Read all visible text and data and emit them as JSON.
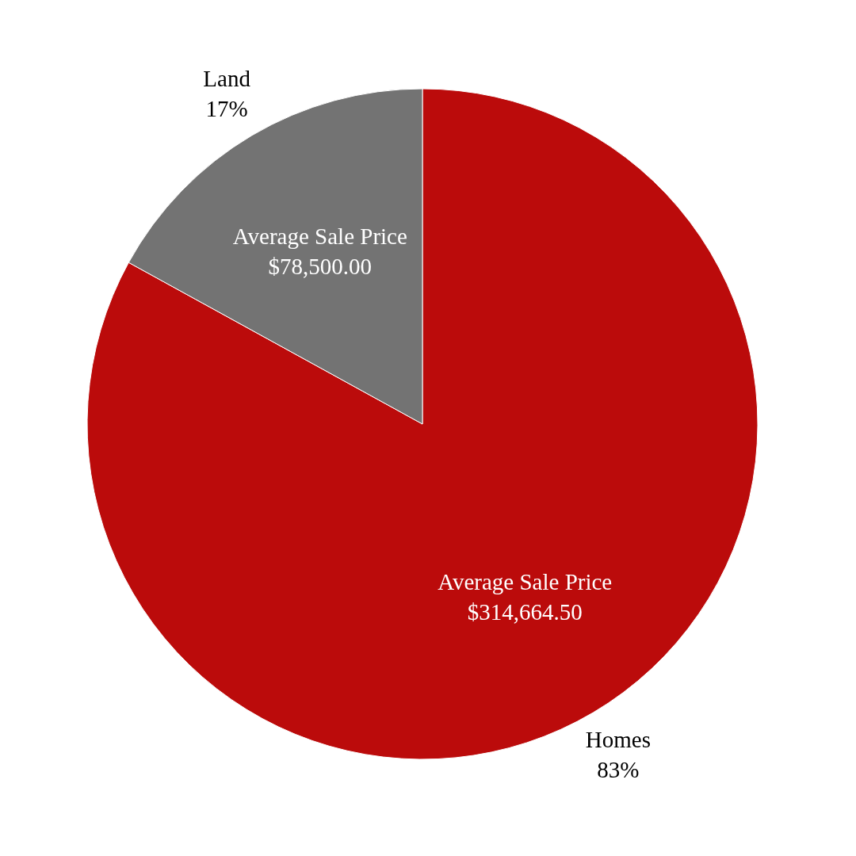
{
  "chart_data": {
    "type": "pie",
    "categories": [
      "Homes",
      "Land"
    ],
    "values": [
      83,
      17
    ],
    "colors": [
      "#bb0b0b",
      "#737373"
    ],
    "value_labels": [
      "83%",
      "17%"
    ],
    "annotations": [
      "Average Sale Price\n$314,664.50",
      "Average Sale Price\n$78,500.00"
    ],
    "legend": false
  }
}
